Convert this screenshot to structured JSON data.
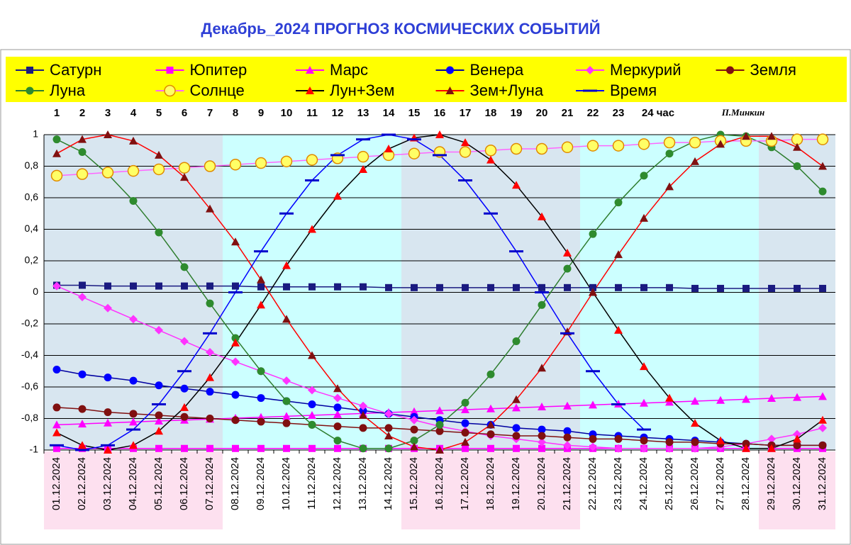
{
  "chart_data": {
    "type": "line",
    "title": "Декабрь_2024 ПРОГНОЗ КОСМИЧЕСКИХ СОБЫТИЙ",
    "hours": [
      "1",
      "2",
      "3",
      "4",
      "5",
      "6",
      "7",
      "8",
      "9",
      "10",
      "11",
      "12",
      "13",
      "14",
      "15",
      "16",
      "17",
      "18",
      "19",
      "20",
      "21",
      "22",
      "23",
      "24 час"
    ],
    "signature": "П.Минкин",
    "categories": [
      "01.12.2024",
      "02.12.2024",
      "03.12.2024",
      "04.12.2024",
      "05.12.2024",
      "06.12.2024",
      "07.12.2024",
      "08.12.2024",
      "09.12.2024",
      "10.12.2024",
      "11.12.2024",
      "12.12.2024",
      "13.12.2024",
      "14.12.2024",
      "15.12.2024",
      "16.12.2024",
      "17.12.2024",
      "18.12.2024",
      "19.12.2024",
      "20.12.2024",
      "21.12.2024",
      "22.12.2024",
      "23.12.2024",
      "24.12.2024",
      "25.12.2024",
      "26.12.2024",
      "27.12.2024",
      "28.12.2024",
      "29.12.2024",
      "30.12.2024",
      "31.12.2024"
    ],
    "ylim": [
      -1,
      1
    ],
    "yticks": [
      -1,
      {
        "value": -0.8,
        "label": "-0,8"
      },
      {
        "value": -0.6,
        "label": "-0,6"
      },
      {
        "value": -0.4,
        "label": "-0,4"
      },
      {
        "value": -0.2,
        "label": "-0,2"
      },
      0,
      {
        "value": 0.2,
        "label": "0,2"
      },
      {
        "value": 0.4,
        "label": "0,4"
      },
      {
        "value": 0.6,
        "label": "0,6"
      },
      {
        "value": 0.8,
        "label": "0,8"
      },
      1
    ],
    "grid": true,
    "series": [
      {
        "name": "Сатурн",
        "color": "#1a1a80",
        "line_color": "#1a1a80",
        "marker": "square",
        "values": [
          0.045,
          0.045,
          0.04,
          0.04,
          0.04,
          0.04,
          0.04,
          0.04,
          0.035,
          0.035,
          0.035,
          0.035,
          0.035,
          0.03,
          0.03,
          0.03,
          0.03,
          0.03,
          0.03,
          0.03,
          0.03,
          0.03,
          0.03,
          0.03,
          0.03,
          0.025,
          0.025,
          0.025,
          0.025,
          0.025,
          0.025
        ]
      },
      {
        "name": "Юпитер",
        "color": "#ff00ff",
        "line_color": "#ff00ff",
        "marker": "square",
        "values": [
          -0.99,
          -0.99,
          -0.99,
          -0.99,
          -0.99,
          -0.99,
          -0.99,
          -0.99,
          -0.99,
          -0.99,
          -0.99,
          -0.99,
          -0.99,
          -0.99,
          -0.99,
          -0.99,
          -0.99,
          -0.99,
          -0.99,
          -0.99,
          -0.99,
          -0.99,
          -0.99,
          -0.99,
          -0.99,
          -0.99,
          -0.99,
          -0.99,
          -0.99,
          -0.99,
          -0.99
        ]
      },
      {
        "name": "Марс",
        "color": "#ff00ff",
        "line_color": "#ff00ff",
        "marker": "triangle",
        "values": [
          -0.84,
          -0.834,
          -0.828,
          -0.822,
          -0.816,
          -0.81,
          -0.804,
          -0.798,
          -0.792,
          -0.786,
          -0.78,
          -0.774,
          -0.768,
          -0.762,
          -0.756,
          -0.75,
          -0.744,
          -0.738,
          -0.732,
          -0.726,
          -0.72,
          -0.714,
          -0.708,
          -0.702,
          -0.696,
          -0.69,
          -0.684,
          -0.678,
          -0.672,
          -0.666,
          -0.66
        ]
      },
      {
        "name": "Венера",
        "color": "#0000ff",
        "line_color": "#0000a0",
        "marker": "circle",
        "values": [
          -0.49,
          -0.52,
          -0.54,
          -0.56,
          -0.59,
          -0.61,
          -0.63,
          -0.65,
          -0.67,
          -0.69,
          -0.71,
          -0.73,
          -0.75,
          -0.77,
          -0.79,
          -0.81,
          -0.83,
          -0.84,
          -0.86,
          -0.87,
          -0.88,
          -0.9,
          -0.91,
          -0.92,
          -0.93,
          -0.94,
          -0.95,
          -0.96,
          -0.97,
          -0.97,
          -0.97
        ]
      },
      {
        "name": "Меркурий",
        "color": "#ff33ff",
        "line_color": "#ff33ff",
        "marker": "diamond",
        "values": [
          0.04,
          -0.03,
          -0.1,
          -0.17,
          -0.24,
          -0.31,
          -0.38,
          -0.44,
          -0.5,
          -0.56,
          -0.62,
          -0.67,
          -0.72,
          -0.77,
          -0.81,
          -0.85,
          -0.88,
          -0.91,
          -0.93,
          -0.95,
          -0.97,
          -0.98,
          -0.99,
          -0.99,
          -0.99,
          -0.99,
          -0.98,
          -0.96,
          -0.93,
          -0.9,
          -0.86
        ]
      },
      {
        "name": "Земля",
        "color": "#801010",
        "line_color": "#801010",
        "marker": "circle",
        "values": [
          -0.73,
          -0.74,
          -0.76,
          -0.77,
          -0.78,
          -0.79,
          -0.8,
          -0.81,
          -0.82,
          -0.83,
          -0.84,
          -0.85,
          -0.86,
          -0.86,
          -0.87,
          -0.88,
          -0.89,
          -0.9,
          -0.91,
          -0.91,
          -0.92,
          -0.93,
          -0.93,
          -0.94,
          -0.95,
          -0.95,
          -0.96,
          -0.96,
          -0.97,
          -0.97,
          -0.97
        ]
      },
      {
        "name": "Луна",
        "color": "#2e8b2e",
        "line_color": "#2e7d2e",
        "marker": "circle",
        "values": [
          0.97,
          0.89,
          0.75,
          0.58,
          0.38,
          0.16,
          -0.07,
          -0.29,
          -0.5,
          -0.69,
          -0.84,
          -0.94,
          -0.99,
          -0.99,
          -0.94,
          -0.84,
          -0.7,
          -0.52,
          -0.31,
          -0.08,
          0.15,
          0.37,
          0.57,
          0.74,
          0.88,
          0.96,
          1.0,
          0.99,
          0.92,
          0.8,
          0.64
        ]
      },
      {
        "name": "Солнце",
        "color": "#ffff66",
        "line_color": "#ff66ff",
        "marker": "bigcircle",
        "values": [
          0.74,
          0.75,
          0.76,
          0.77,
          0.78,
          0.79,
          0.8,
          0.81,
          0.82,
          0.83,
          0.84,
          0.85,
          0.86,
          0.87,
          0.88,
          0.89,
          0.89,
          0.9,
          0.91,
          0.91,
          0.92,
          0.93,
          0.93,
          0.94,
          0.95,
          0.95,
          0.96,
          0.96,
          0.96,
          0.97,
          0.97
        ]
      },
      {
        "name": "Лун+Зем",
        "color": "#ff0000",
        "line_color": "#000000",
        "marker": "triangle",
        "values": [
          -0.89,
          -0.97,
          -1.0,
          -0.97,
          -0.88,
          -0.73,
          -0.54,
          -0.32,
          -0.08,
          0.17,
          0.4,
          0.61,
          0.78,
          0.91,
          0.98,
          1.0,
          0.95,
          0.84,
          0.68,
          0.48,
          0.25,
          0.0,
          -0.24,
          -0.47,
          -0.67,
          -0.83,
          -0.94,
          -0.99,
          -0.99,
          -0.93,
          -0.81
        ]
      },
      {
        "name": "Зем+Луна",
        "color": "#801010",
        "line_color": "#ff0000",
        "marker": "triangle",
        "values": [
          0.88,
          0.97,
          1.0,
          0.96,
          0.87,
          0.73,
          0.53,
          0.32,
          0.08,
          -0.17,
          -0.4,
          -0.61,
          -0.78,
          -0.91,
          -0.98,
          -1.0,
          -0.95,
          -0.84,
          -0.68,
          -0.48,
          -0.25,
          0.0,
          0.24,
          0.47,
          0.67,
          0.83,
          0.94,
          0.99,
          0.99,
          0.92,
          0.8
        ]
      },
      {
        "name": "Время",
        "color": "#0000cc",
        "line_color": "#0000ff",
        "marker": "dash",
        "values": [
          -0.97,
          -1.0,
          -0.97,
          -0.87,
          -0.71,
          -0.5,
          -0.26,
          0.0,
          0.26,
          0.5,
          0.71,
          0.87,
          0.97,
          1.0,
          0.97,
          0.87,
          0.71,
          0.5,
          0.26,
          0.0,
          -0.26,
          -0.5,
          -0.71,
          -0.87,
          null,
          null,
          null,
          null,
          null,
          null,
          null
        ]
      }
    ]
  }
}
